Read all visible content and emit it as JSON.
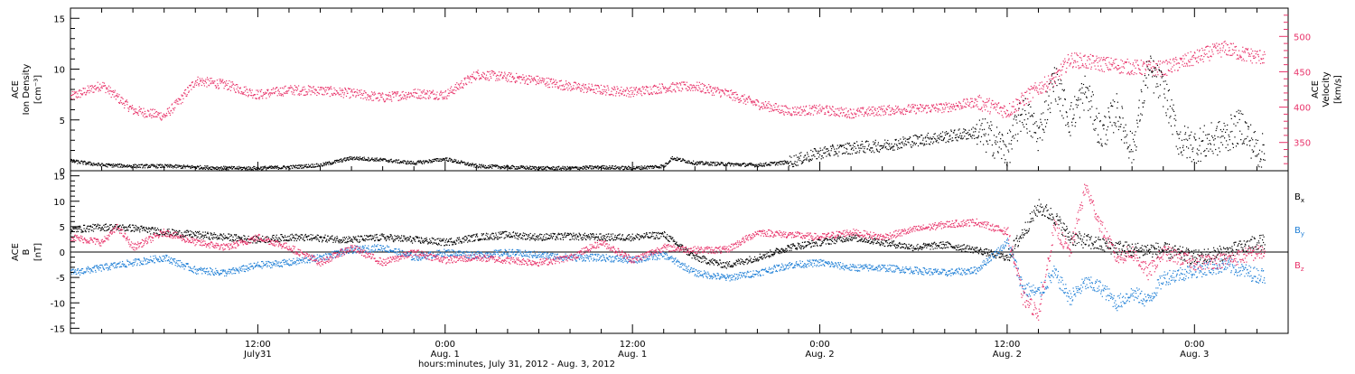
{
  "chart_data": [
    {
      "type": "scatter",
      "panel": "top",
      "ylabel_left": [
        "ACE",
        "Ion Density",
        "[cm⁻³]"
      ],
      "ylabel_right": [
        "ACE",
        "Velocity",
        "[km/s]"
      ],
      "ylim_left": [
        0,
        16
      ],
      "yticks_left": [
        0,
        5,
        10,
        15
      ],
      "ylim_right": [
        310,
        540
      ],
      "yticks_right": [
        350,
        400,
        450,
        500
      ],
      "xlim_hours": [
        0,
        78
      ],
      "series": [
        {
          "key": "density",
          "color": "#000000",
          "axis": "left",
          "x": [
            0,
            2,
            4,
            6,
            8,
            10,
            12,
            14,
            16,
            18,
            20,
            22,
            24,
            26,
            28,
            30,
            32,
            34,
            36,
            38,
            38.5,
            40,
            42,
            44,
            46,
            48,
            50,
            52,
            54,
            56,
            58,
            59,
            60,
            61,
            62,
            63,
            64,
            65,
            66,
            67,
            68,
            69,
            70,
            71,
            72,
            73,
            74,
            75,
            76
          ],
          "y": [
            1.0,
            0.6,
            0.5,
            0.5,
            0.4,
            0.3,
            0.3,
            0.4,
            0.6,
            1.3,
            1.1,
            0.8,
            1.2,
            0.5,
            0.4,
            0.3,
            0.3,
            0.4,
            0.3,
            0.5,
            1.3,
            0.8,
            0.7,
            0.6,
            0.9,
            1.8,
            2.3,
            2.5,
            3.0,
            3.4,
            3.8,
            3.2,
            2.0,
            6.0,
            3.5,
            9.0,
            5.0,
            8.0,
            3.5,
            6.0,
            2.0,
            10.0,
            8.0,
            3.0,
            2.5,
            3.0,
            3.5,
            4.5,
            2.0
          ]
        },
        {
          "key": "velocity",
          "color": "#e8336a",
          "axis": "right",
          "x": [
            0,
            2,
            4,
            6,
            7,
            8,
            10,
            12,
            14,
            16,
            18,
            20,
            22,
            24,
            26,
            28,
            30,
            32,
            34,
            36,
            38,
            40,
            42,
            44,
            46,
            48,
            50,
            52,
            54,
            56,
            58,
            60,
            62,
            63,
            64,
            66,
            68,
            70,
            72,
            73,
            74,
            75,
            76
          ],
          "y": [
            415,
            432,
            396,
            388,
            410,
            438,
            432,
            418,
            425,
            424,
            420,
            414,
            420,
            418,
            447,
            443,
            438,
            430,
            425,
            422,
            428,
            430,
            420,
            405,
            395,
            397,
            392,
            396,
            398,
            400,
            408,
            395,
            428,
            440,
            468,
            462,
            457,
            455,
            470,
            478,
            484,
            476,
            472
          ]
        }
      ]
    },
    {
      "type": "scatter",
      "panel": "bottom",
      "ylabel": [
        "ACE",
        "B",
        "[nT]"
      ],
      "ylim": [
        -16,
        16
      ],
      "yticks": [
        -15,
        -10,
        -5,
        0,
        5,
        10,
        15
      ],
      "xlim_hours": [
        0,
        78
      ],
      "legend": [
        "Bx",
        "By",
        "Bz"
      ],
      "series": [
        {
          "key": "Bx",
          "name": "B",
          "sub": "x",
          "color": "#000000",
          "x": [
            0,
            2,
            4,
            6,
            8,
            10,
            12,
            14,
            16,
            18,
            20,
            22,
            24,
            26,
            28,
            30,
            32,
            34,
            36,
            38,
            40,
            42,
            44,
            46,
            48,
            50,
            52,
            54,
            56,
            58,
            60,
            62,
            63,
            64,
            66,
            68,
            70,
            72,
            74,
            76
          ],
          "y": [
            4.5,
            5.0,
            4.8,
            4.0,
            3.5,
            3.0,
            2.5,
            3.0,
            2.8,
            2.5,
            3.0,
            2.5,
            2.0,
            3.0,
            3.5,
            3.0,
            3.2,
            3.0,
            3.0,
            3.5,
            -1.0,
            -2.5,
            -1.0,
            1.0,
            2.0,
            3.0,
            2.0,
            1.0,
            1.5,
            0.5,
            -1.0,
            9.0,
            7.0,
            3.0,
            1.5,
            0.5,
            0.5,
            -1.0,
            0.0,
            2.0
          ]
        },
        {
          "key": "By",
          "name": "B",
          "sub": "y",
          "color": "#1f7fd6",
          "x": [
            0,
            2,
            4,
            6,
            8,
            10,
            12,
            14,
            16,
            18,
            20,
            22,
            24,
            26,
            28,
            30,
            32,
            34,
            36,
            38,
            40,
            42,
            44,
            46,
            48,
            50,
            52,
            54,
            56,
            58,
            60,
            61,
            62,
            63,
            64,
            65,
            66,
            67,
            68,
            69,
            70,
            72,
            74,
            76
          ],
          "y": [
            -4.0,
            -3.0,
            -2.0,
            -1.0,
            -3.5,
            -4.0,
            -2.5,
            -2.0,
            -1.0,
            0.5,
            1.0,
            -1.0,
            0.0,
            -0.5,
            0.0,
            -0.5,
            -1.0,
            -1.0,
            -1.5,
            -0.5,
            -4.0,
            -5.0,
            -4.0,
            -2.5,
            -2.0,
            -3.0,
            -3.0,
            -3.5,
            -4.0,
            -3.5,
            2.0,
            -7.0,
            -8.0,
            -4.0,
            -9.0,
            -6.0,
            -7.0,
            -10.0,
            -8.0,
            -9.5,
            -5.0,
            -3.5,
            -2.5,
            -4.5
          ]
        },
        {
          "key": "Bz",
          "name": "B",
          "sub": "z",
          "color": "#e8336a",
          "x": [
            0,
            2,
            3,
            4,
            6,
            8,
            10,
            12,
            14,
            16,
            18,
            20,
            22,
            24,
            26,
            28,
            30,
            32,
            34,
            36,
            38,
            40,
            42,
            44,
            46,
            48,
            50,
            52,
            54,
            56,
            58,
            60,
            61,
            62,
            63,
            64,
            65,
            66,
            67,
            68,
            69,
            70,
            72,
            74,
            76
          ],
          "y": [
            3.0,
            2.0,
            5.0,
            1.0,
            4.0,
            2.0,
            1.0,
            3.0,
            1.0,
            -2.0,
            1.0,
            -2.0,
            0.0,
            -1.5,
            -1.0,
            -1.5,
            -2.0,
            -1.0,
            2.0,
            -1.5,
            1.0,
            0.5,
            0.5,
            4.0,
            3.5,
            3.0,
            4.0,
            3.0,
            4.5,
            5.5,
            6.0,
            4.0,
            -9.0,
            -12.0,
            5.0,
            0.0,
            13.0,
            5.0,
            -1.0,
            0.0,
            -4.0,
            0.0,
            -2.0,
            -1.5,
            0.0
          ]
        }
      ]
    }
  ],
  "x_axis": {
    "ticks": [
      {
        "hour": 12,
        "time": "12:00",
        "date": "July31"
      },
      {
        "hour": 24,
        "time": "0:00",
        "date": "Aug. 1"
      },
      {
        "hour": 36,
        "time": "12:00",
        "date": "Aug. 1"
      },
      {
        "hour": 48,
        "time": "0:00",
        "date": "Aug. 2"
      },
      {
        "hour": 60,
        "time": "12:00",
        "date": "Aug. 2"
      },
      {
        "hour": 72,
        "time": "0:00",
        "date": "Aug. 3"
      }
    ],
    "xlabel": "hours:minutes, July 31, 2012 - Aug.  3, 2012"
  }
}
